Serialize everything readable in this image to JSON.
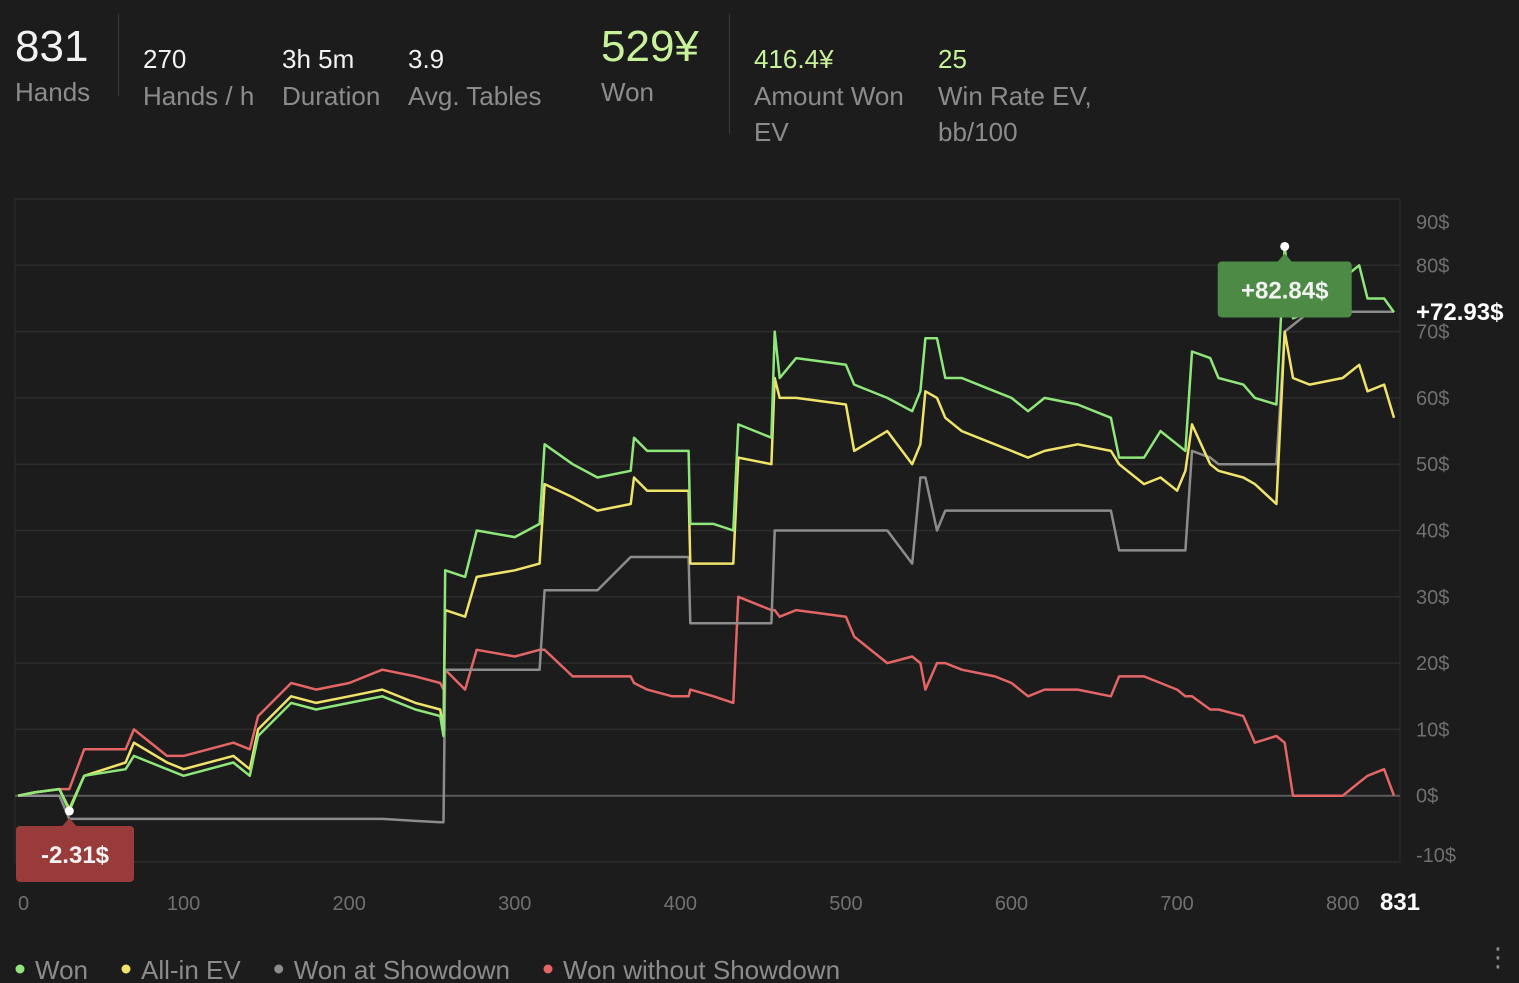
{
  "stats": [
    {
      "value": "831",
      "label": "Hands"
    },
    {
      "value": "270",
      "label": "Hands / h"
    },
    {
      "value": "3h 5m",
      "label": "Duration"
    },
    {
      "value": "3.9",
      "label": "Avg. Tables"
    },
    {
      "value": "529¥",
      "label": "Won"
    },
    {
      "value": "416.4¥",
      "label": "Amount Won EV"
    },
    {
      "value": "25",
      "label": "Win Rate EV, bb/100"
    }
  ],
  "chart_data": {
    "type": "line",
    "x": [
      0,
      10,
      25,
      31,
      40,
      65,
      70,
      90,
      100,
      130,
      140,
      145,
      165,
      180,
      200,
      220,
      240,
      255,
      257,
      258,
      270,
      277,
      300,
      315,
      318,
      335,
      350,
      370,
      372,
      380,
      395,
      405,
      406,
      420,
      432,
      435,
      455,
      457,
      460,
      470,
      500,
      505,
      525,
      540,
      545,
      548,
      555,
      560,
      570,
      590,
      600,
      610,
      620,
      640,
      660,
      665,
      680,
      690,
      700,
      705,
      709,
      720,
      725,
      740,
      747,
      760,
      765,
      770,
      780,
      800,
      810,
      815,
      825,
      831
    ],
    "series": [
      {
        "name": "Won",
        "color": "#8fe67a",
        "values": [
          0,
          0.5,
          1,
          -2.31,
          3,
          4,
          6,
          4,
          3,
          5,
          3,
          9,
          14,
          13,
          14,
          15,
          13,
          12,
          9,
          34,
          33,
          40,
          39,
          41,
          53,
          50,
          48,
          49,
          54,
          52,
          52,
          52,
          41,
          41,
          40,
          56,
          54,
          70,
          63,
          66,
          65,
          62,
          60,
          58,
          61,
          69,
          69,
          63,
          63,
          61,
          60,
          58,
          60,
          59,
          57,
          51,
          51,
          55,
          53,
          52,
          67,
          66,
          63,
          62,
          60,
          59,
          82.84,
          72,
          73,
          78,
          80,
          75,
          75,
          72.93
        ]
      },
      {
        "name": "All-in EV",
        "color": "#f0e36a",
        "values": [
          0,
          0.5,
          1,
          -2,
          3,
          5,
          8,
          5,
          4,
          6,
          4,
          10,
          15,
          14,
          15,
          16,
          14,
          13,
          10,
          28,
          27,
          33,
          34,
          35,
          47,
          45,
          43,
          44,
          48,
          46,
          46,
          46,
          35,
          35,
          35,
          51,
          50,
          63,
          60,
          60,
          59,
          52,
          55,
          50,
          53,
          61,
          60,
          57,
          55,
          53,
          52,
          51,
          52,
          53,
          52,
          50,
          47,
          48,
          46,
          49,
          56,
          50,
          49,
          48,
          47,
          44,
          70,
          63,
          62,
          63,
          65,
          61,
          62,
          57
        ]
      },
      {
        "name": "Won at Showdown",
        "color": "#8c8c8c",
        "values": [
          0,
          0,
          0,
          -3.5,
          -3.5,
          -3.5,
          -3.5,
          -3.5,
          -3.5,
          -3.5,
          -3.5,
          -3.5,
          -3.5,
          -3.5,
          -3.5,
          -3.5,
          -3.8,
          -4,
          -4,
          19,
          19,
          19,
          19,
          19,
          31,
          31,
          31,
          36,
          36,
          36,
          36,
          36,
          26,
          26,
          26,
          26,
          26,
          40,
          40,
          40,
          40,
          40,
          40,
          35,
          48,
          48,
          40,
          43,
          43,
          43,
          43,
          43,
          43,
          43,
          43,
          37,
          37,
          37,
          37,
          37,
          52,
          51,
          50,
          50,
          50,
          50,
          70,
          71,
          73,
          73,
          73,
          73,
          73,
          73
        ]
      },
      {
        "name": "Won without Showdown",
        "color": "#e36565",
        "values": [
          0,
          0.5,
          1,
          1,
          7,
          7,
          10,
          6,
          6,
          8,
          7,
          12,
          17,
          16,
          17,
          19,
          18,
          17,
          16,
          19,
          16,
          22,
          21,
          22,
          22,
          18,
          18,
          18,
          17,
          16,
          15,
          15,
          16,
          15,
          14,
          30,
          28,
          28,
          27,
          28,
          27,
          24,
          20,
          21,
          20,
          16,
          20,
          20,
          19,
          18,
          17,
          15,
          16,
          16,
          15,
          18,
          18,
          17,
          16,
          15,
          15,
          13,
          13,
          12,
          8,
          9,
          8,
          0,
          0,
          0,
          2,
          3,
          4,
          0
        ]
      }
    ],
    "xlim": [
      0,
      831
    ],
    "xticks": [
      0,
      100,
      200,
      300,
      400,
      500,
      600,
      700,
      800,
      831
    ],
    "ylim": [
      -10,
      90
    ],
    "yticks": [
      {
        "value": 90,
        "label": "90$"
      },
      {
        "value": 80,
        "label": "80$"
      },
      {
        "value": 70,
        "label": "70$"
      },
      {
        "value": 60,
        "label": "60$"
      },
      {
        "value": 50,
        "label": "50$"
      },
      {
        "value": 40,
        "label": "40$"
      },
      {
        "value": 30,
        "label": "30$"
      },
      {
        "value": 20,
        "label": "20$"
      },
      {
        "value": 10,
        "label": "10$"
      },
      {
        "value": 0,
        "label": "0$"
      },
      {
        "value": -10,
        "label": "-10$"
      }
    ],
    "grid": true,
    "annotations": [
      {
        "x": 765,
        "value": 82.84,
        "label": "+82.84$",
        "color": "#4d8a45"
      },
      {
        "x": 31,
        "value": -2.31,
        "label": "-2.31$",
        "color": "#9a3b3b"
      }
    ],
    "end_label": {
      "value": 72.93,
      "label": "+72.93$"
    }
  }
}
